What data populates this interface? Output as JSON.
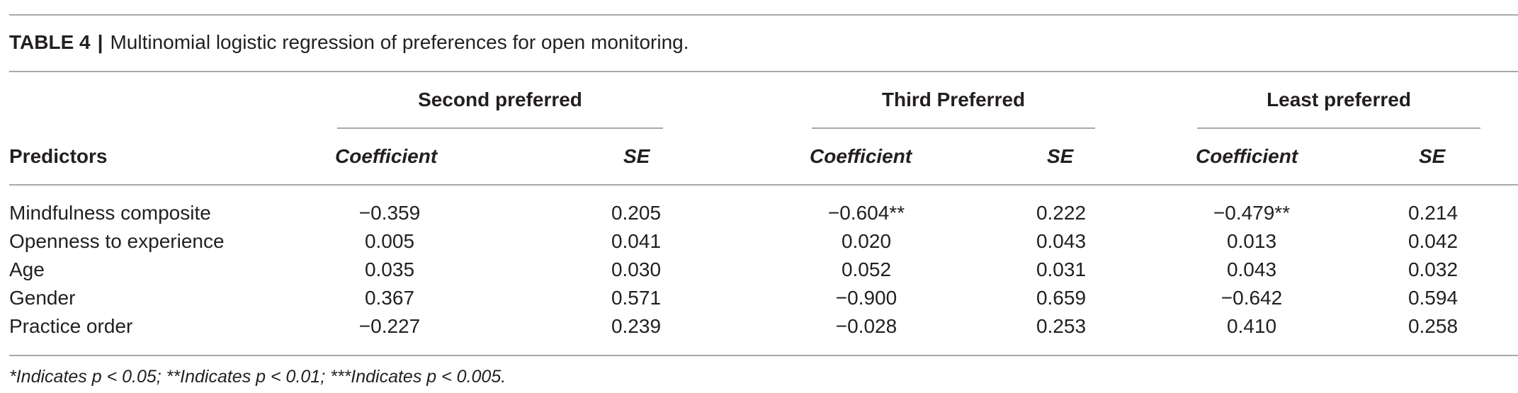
{
  "table": {
    "label": "TABLE 4",
    "separator": "|",
    "title": "Multinomial logistic regression of preferences for open monitoring.",
    "groups": [
      "Second preferred",
      "Third Preferred",
      "Least preferred"
    ],
    "row_header": "Predictors",
    "subheaders": [
      "Coefficient",
      "SE",
      "Coefficient",
      "SE",
      "Coefficient",
      "SE"
    ],
    "rows": [
      {
        "predictor": "Mindfulness composite",
        "values": [
          "−0.359",
          "0.205",
          "−0.604**",
          "0.222",
          "−0.479**",
          "0.214"
        ]
      },
      {
        "predictor": "Openness to experience",
        "values": [
          "0.005",
          "0.041",
          "0.020",
          "0.043",
          "0.013",
          "0.042"
        ]
      },
      {
        "predictor": "Age",
        "values": [
          "0.035",
          "0.030",
          "0.052",
          "0.031",
          "0.043",
          "0.032"
        ]
      },
      {
        "predictor": "Gender",
        "values": [
          "0.367",
          "0.571",
          "−0.900",
          "0.659",
          "−0.642",
          "0.594"
        ]
      },
      {
        "predictor": "Practice order",
        "values": [
          "−0.227",
          "0.239",
          "−0.028",
          "0.253",
          "0.410",
          "0.258"
        ]
      }
    ],
    "footnote": "*Indicates p < 0.05; **Indicates p < 0.01; ***Indicates p < 0.005."
  }
}
